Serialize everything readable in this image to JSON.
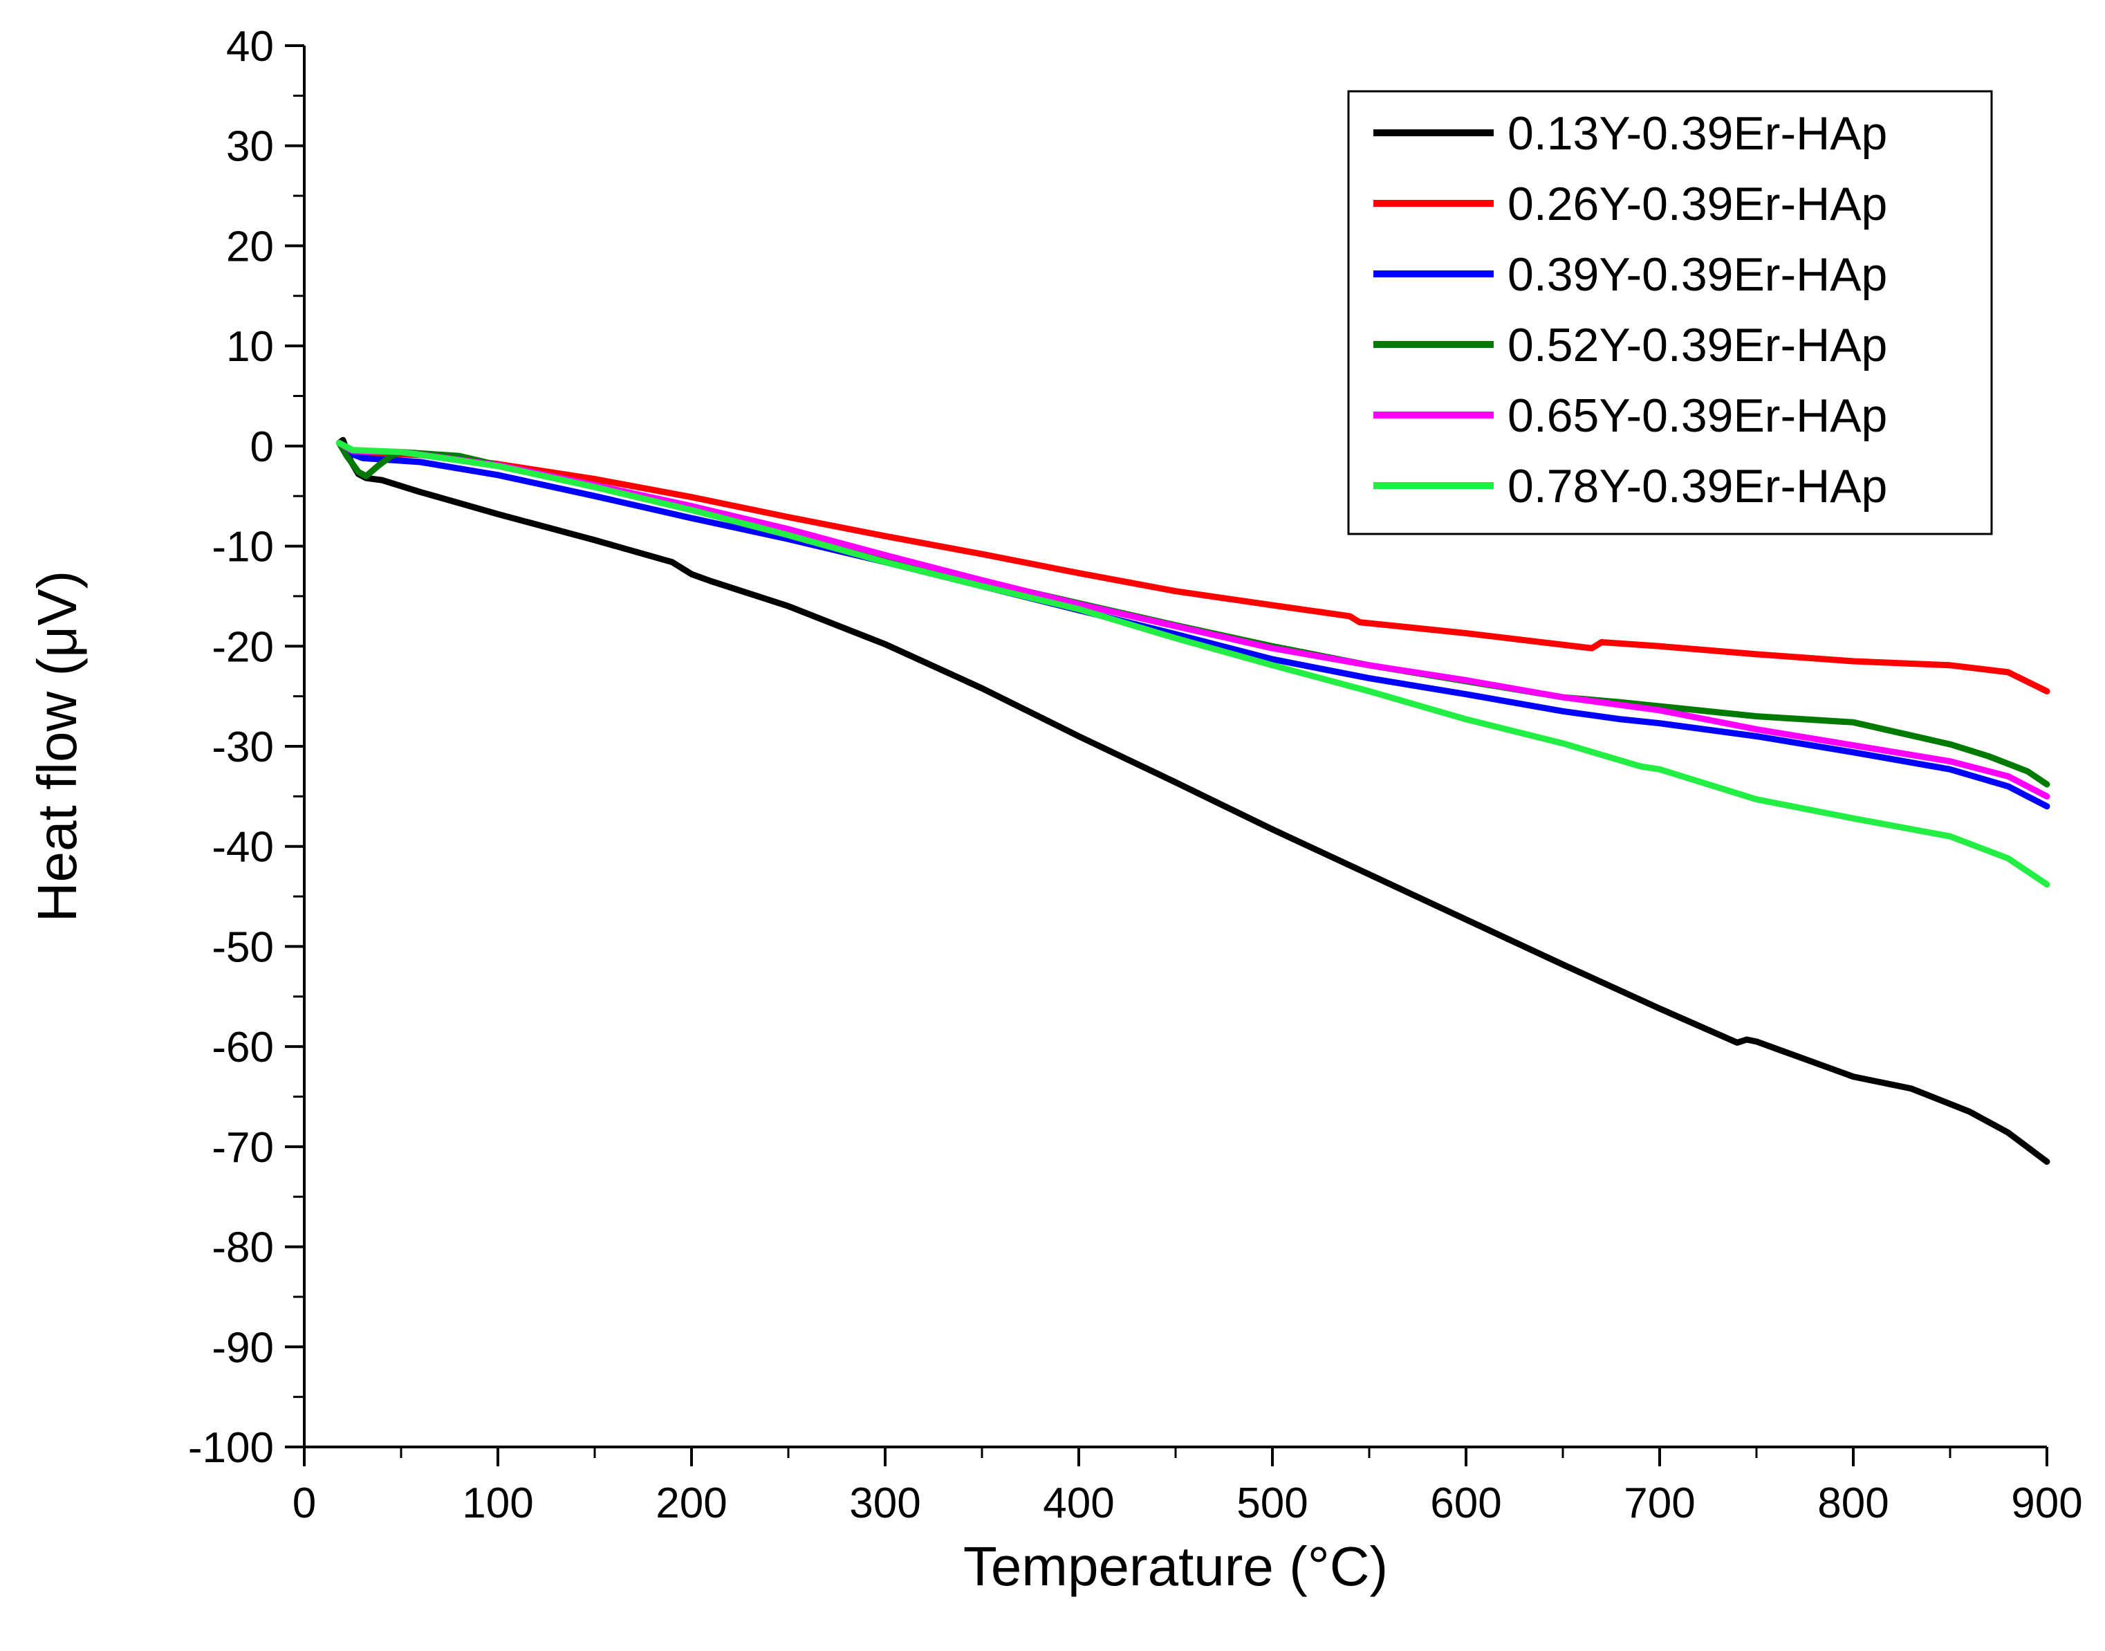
{
  "chart_data": {
    "type": "line",
    "title": "",
    "xlabel": "Temperature (°C)",
    "ylabel": "Heat flow (μV)",
    "xlim": [
      0,
      900
    ],
    "ylim": [
      -100,
      40
    ],
    "xticks": [
      0,
      100,
      200,
      300,
      400,
      500,
      600,
      700,
      800,
      900
    ],
    "yticks": [
      40,
      30,
      20,
      10,
      0,
      -10,
      -20,
      -30,
      -40,
      -50,
      -60,
      -70,
      -80,
      -90,
      -100
    ],
    "grid": false,
    "legend_position": "top-right",
    "series": [
      {
        "name": "0.13Y-0.39Er-HAp",
        "color": "#000000",
        "points": [
          [
            18,
            0.3
          ],
          [
            20,
            0.6
          ],
          [
            24,
            -1.5
          ],
          [
            28,
            -2.8
          ],
          [
            32,
            -3.2
          ],
          [
            40,
            -3.4
          ],
          [
            60,
            -4.6
          ],
          [
            80,
            -5.7
          ],
          [
            100,
            -6.8
          ],
          [
            150,
            -9.4
          ],
          [
            190,
            -11.6
          ],
          [
            200,
            -12.8
          ],
          [
            210,
            -13.5
          ],
          [
            250,
            -16.0
          ],
          [
            300,
            -19.8
          ],
          [
            350,
            -24.2
          ],
          [
            400,
            -29.0
          ],
          [
            450,
            -33.6
          ],
          [
            500,
            -38.3
          ],
          [
            550,
            -42.8
          ],
          [
            600,
            -47.3
          ],
          [
            650,
            -51.8
          ],
          [
            700,
            -56.2
          ],
          [
            740,
            -59.6
          ],
          [
            745,
            -59.3
          ],
          [
            750,
            -59.5
          ],
          [
            780,
            -61.6
          ],
          [
            800,
            -63.0
          ],
          [
            830,
            -64.2
          ],
          [
            860,
            -66.5
          ],
          [
            880,
            -68.6
          ],
          [
            900,
            -71.5
          ]
        ]
      },
      {
        "name": "0.26Y-0.39Er-HAp",
        "color": "#ff0000",
        "points": [
          [
            18,
            0.3
          ],
          [
            22,
            -0.3
          ],
          [
            30,
            -0.7
          ],
          [
            60,
            -0.9
          ],
          [
            100,
            -1.8
          ],
          [
            150,
            -3.3
          ],
          [
            200,
            -5.1
          ],
          [
            250,
            -7.1
          ],
          [
            300,
            -9.0
          ],
          [
            350,
            -10.8
          ],
          [
            400,
            -12.7
          ],
          [
            450,
            -14.5
          ],
          [
            500,
            -15.9
          ],
          [
            540,
            -17.0
          ],
          [
            545,
            -17.6
          ],
          [
            600,
            -18.7
          ],
          [
            665,
            -20.2
          ],
          [
            670,
            -19.6
          ],
          [
            700,
            -20.0
          ],
          [
            750,
            -20.8
          ],
          [
            800,
            -21.5
          ],
          [
            850,
            -21.9
          ],
          [
            880,
            -22.6
          ],
          [
            900,
            -24.5
          ]
        ]
      },
      {
        "name": "0.39Y-0.39Er-HAp",
        "color": "#0000ff",
        "points": [
          [
            18,
            0.3
          ],
          [
            22,
            -0.6
          ],
          [
            30,
            -1.2
          ],
          [
            60,
            -1.6
          ],
          [
            100,
            -2.9
          ],
          [
            150,
            -5.0
          ],
          [
            200,
            -7.2
          ],
          [
            250,
            -9.3
          ],
          [
            300,
            -11.6
          ],
          [
            350,
            -14.0
          ],
          [
            400,
            -16.4
          ],
          [
            450,
            -18.8
          ],
          [
            500,
            -21.3
          ],
          [
            550,
            -23.2
          ],
          [
            600,
            -24.8
          ],
          [
            650,
            -26.5
          ],
          [
            680,
            -27.3
          ],
          [
            700,
            -27.7
          ],
          [
            750,
            -29.0
          ],
          [
            800,
            -30.6
          ],
          [
            850,
            -32.3
          ],
          [
            880,
            -34.0
          ],
          [
            900,
            -36.0
          ]
        ]
      },
      {
        "name": "0.52Y-0.39Er-HAp",
        "color": "#007a00",
        "points": [
          [
            18,
            0.3
          ],
          [
            22,
            -1.0
          ],
          [
            28,
            -2.6
          ],
          [
            32,
            -3.0
          ],
          [
            38,
            -2.0
          ],
          [
            45,
            -1.0
          ],
          [
            50,
            -0.6
          ],
          [
            80,
            -1.0
          ],
          [
            100,
            -1.9
          ],
          [
            150,
            -4.0
          ],
          [
            200,
            -6.2
          ],
          [
            250,
            -8.8
          ],
          [
            300,
            -11.3
          ],
          [
            350,
            -13.5
          ],
          [
            400,
            -15.7
          ],
          [
            450,
            -17.9
          ],
          [
            500,
            -20.0
          ],
          [
            550,
            -21.9
          ],
          [
            600,
            -23.5
          ],
          [
            650,
            -25.1
          ],
          [
            680,
            -25.6
          ],
          [
            700,
            -26.0
          ],
          [
            750,
            -27.0
          ],
          [
            800,
            -27.6
          ],
          [
            850,
            -29.8
          ],
          [
            870,
            -31.0
          ],
          [
            890,
            -32.5
          ],
          [
            900,
            -33.8
          ]
        ]
      },
      {
        "name": "0.65Y-0.39Er-HAp",
        "color": "#ff00ff",
        "points": [
          [
            18,
            0.3
          ],
          [
            25,
            -0.5
          ],
          [
            50,
            -0.6
          ],
          [
            100,
            -1.9
          ],
          [
            150,
            -3.9
          ],
          [
            200,
            -6.0
          ],
          [
            250,
            -8.3
          ],
          [
            300,
            -10.9
          ],
          [
            350,
            -13.4
          ],
          [
            400,
            -15.8
          ],
          [
            450,
            -18.0
          ],
          [
            500,
            -20.2
          ],
          [
            550,
            -21.9
          ],
          [
            600,
            -23.4
          ],
          [
            650,
            -25.1
          ],
          [
            700,
            -26.4
          ],
          [
            750,
            -28.3
          ],
          [
            800,
            -29.9
          ],
          [
            850,
            -31.5
          ],
          [
            880,
            -33.0
          ],
          [
            900,
            -35.0
          ]
        ]
      },
      {
        "name": "0.78Y-0.39Er-HAp",
        "color": "#22ee44",
        "points": [
          [
            18,
            0.3
          ],
          [
            25,
            -0.4
          ],
          [
            50,
            -0.6
          ],
          [
            100,
            -2.0
          ],
          [
            150,
            -4.1
          ],
          [
            200,
            -6.4
          ],
          [
            250,
            -8.9
          ],
          [
            300,
            -11.6
          ],
          [
            350,
            -14.0
          ],
          [
            400,
            -16.3
          ],
          [
            450,
            -19.2
          ],
          [
            500,
            -21.9
          ],
          [
            550,
            -24.5
          ],
          [
            600,
            -27.3
          ],
          [
            650,
            -29.7
          ],
          [
            690,
            -32.0
          ],
          [
            700,
            -32.3
          ],
          [
            750,
            -35.3
          ],
          [
            800,
            -37.2
          ],
          [
            850,
            -39.0
          ],
          [
            880,
            -41.2
          ],
          [
            900,
            -43.8
          ]
        ]
      }
    ]
  }
}
